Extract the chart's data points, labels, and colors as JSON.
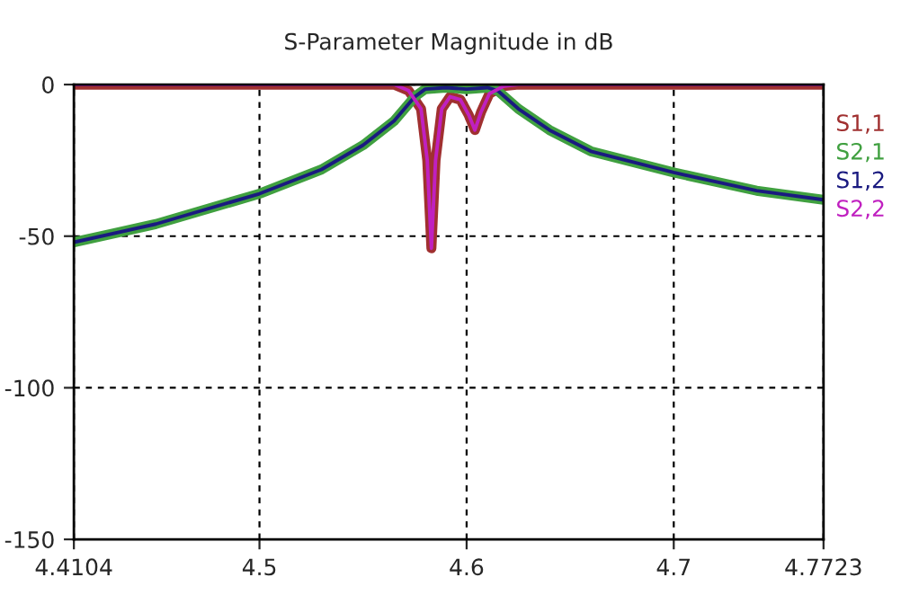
{
  "chart_data": {
    "type": "line",
    "title": "S-Parameter Magnitude in dB",
    "xlim": [
      4.4104,
      4.7723
    ],
    "xticks": [
      4.4104,
      4.5,
      4.6,
      4.7,
      4.7723
    ],
    "ylim": [
      -150,
      0
    ],
    "yticks": [
      0,
      -50,
      -100,
      -150
    ],
    "grid": true,
    "legend": "right",
    "line_style": "solid",
    "marker": "none",
    "series": [
      {
        "name": "S1,1",
        "color": "#a03030",
        "x": [
          4.4104,
          4.565,
          4.572,
          4.578,
          4.581,
          4.583,
          4.585,
          4.588,
          4.592,
          4.597,
          4.601,
          4.604,
          4.607,
          4.611,
          4.618,
          4.625,
          4.7723
        ],
        "values": [
          0,
          0,
          -2,
          -8,
          -25,
          -54,
          -25,
          -8,
          -4,
          -5,
          -10,
          -15,
          -9,
          -3,
          -0.5,
          0,
          0
        ]
      },
      {
        "name": "S2,1",
        "color": "#40a040",
        "x": [
          4.4104,
          4.45,
          4.5,
          4.53,
          4.55,
          4.565,
          4.575,
          4.58,
          4.59,
          4.6,
          4.61,
          4.615,
          4.625,
          4.64,
          4.66,
          4.7,
          4.74,
          4.7723
        ],
        "values": [
          -52,
          -46,
          -36,
          -28,
          -20,
          -12,
          -4,
          -1.5,
          -1,
          -1.5,
          -1,
          -2,
          -8,
          -15,
          -22,
          -29,
          -35,
          -38
        ]
      },
      {
        "name": "S1,2",
        "color": "#1a1a80",
        "x": [
          4.4104,
          4.45,
          4.5,
          4.53,
          4.55,
          4.565,
          4.575,
          4.58,
          4.59,
          4.6,
          4.61,
          4.615,
          4.625,
          4.64,
          4.66,
          4.7,
          4.74,
          4.7723
        ],
        "values": [
          -52,
          -46,
          -36,
          -28,
          -20,
          -12,
          -4,
          -1.5,
          -1,
          -1.5,
          -1,
          -2,
          -8,
          -15,
          -22,
          -29,
          -35,
          -38
        ]
      },
      {
        "name": "S2,2",
        "color": "#c020c0",
        "x": [
          4.4104,
          4.565,
          4.572,
          4.578,
          4.581,
          4.583,
          4.585,
          4.588,
          4.592,
          4.597,
          4.601,
          4.604,
          4.607,
          4.611,
          4.618,
          4.625,
          4.7723
        ],
        "values": [
          0,
          0,
          -2,
          -8,
          -25,
          -54,
          -25,
          -8,
          -4,
          -5,
          -10,
          -15,
          -9,
          -3,
          -0.5,
          0,
          0
        ]
      }
    ]
  }
}
